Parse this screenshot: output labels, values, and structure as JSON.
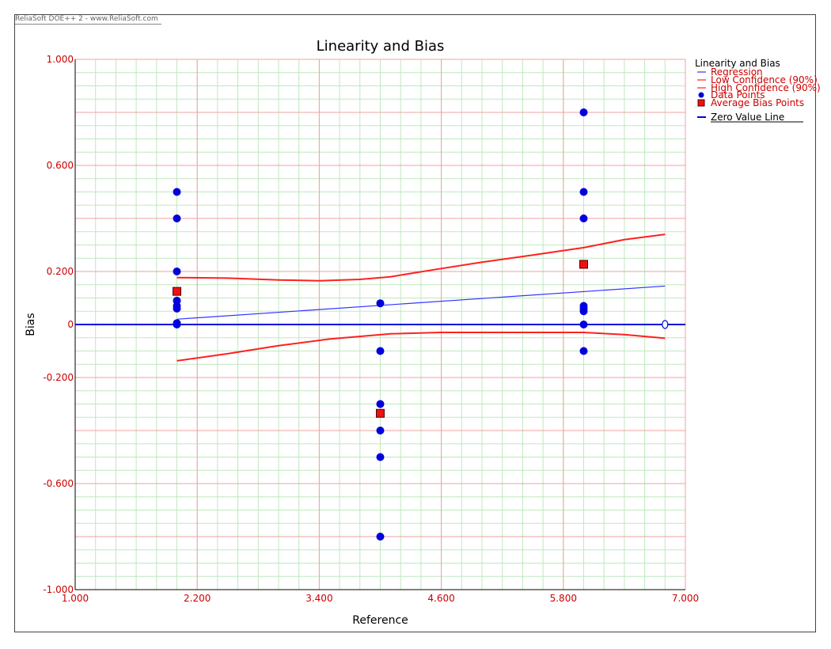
{
  "watermark": "ReliaSoft DOE++ 2 - www.ReliaSoft.com",
  "chart_data": {
    "type": "scatter",
    "title": "Linearity and Bias",
    "xlabel": "Reference",
    "ylabel": "Bias",
    "xlim": [
      1.0,
      7.0
    ],
    "ylim": [
      -1.0,
      1.0
    ],
    "xticks": [
      1.0,
      2.2,
      3.4,
      4.6,
      5.8,
      7.0
    ],
    "xtick_labels": [
      "1.000",
      "2.200",
      "3.400",
      "4.600",
      "5.800",
      "7.000"
    ],
    "yticks": [
      1.0,
      0.6,
      0.2,
      0,
      -0.2,
      -0.6,
      -1.0
    ],
    "ytick_labels": [
      "1.000",
      "0.600",
      "0.200",
      "0",
      "-0.200",
      "-0.600",
      "-1.000"
    ],
    "grid": true,
    "legend_position": "right",
    "legend": {
      "title": "Linearity and Bias",
      "items": [
        {
          "label": "Regression",
          "kind": "thin-line",
          "color": "#3333ff"
        },
        {
          "label": "Low Confidence (90%)",
          "kind": "thin-line",
          "color": "#ff2020"
        },
        {
          "label": "High Confidence (90%)",
          "kind": "thin-line",
          "color": "#ff2020"
        },
        {
          "label": "Data Points",
          "kind": "dot",
          "color": "#0000dd"
        },
        {
          "label": "Average Bias Points",
          "kind": "square",
          "color": "#ee1111"
        },
        {
          "label": "Zero Value Line",
          "kind": "thick-line",
          "color": "#0000dd"
        }
      ]
    },
    "colors": {
      "data_points": "#0000dd",
      "average_bias": "#ee1111",
      "regression": "#3333ff",
      "confidence": "#ff2020",
      "zero_line": "#0000dd",
      "major_grid": "#f2a0a0",
      "minor_grid": "#bfe8bf",
      "tick_labels": "#cc0000"
    },
    "data_points": [
      {
        "x": 2.0,
        "y": 0.5
      },
      {
        "x": 2.0,
        "y": 0.4
      },
      {
        "x": 2.0,
        "y": 0.2
      },
      {
        "x": 2.0,
        "y": 0.09
      },
      {
        "x": 2.0,
        "y": 0.07
      },
      {
        "x": 2.0,
        "y": 0.06
      },
      {
        "x": 2.0,
        "y": 0.005
      },
      {
        "x": 2.0,
        "y": 0.0
      },
      {
        "x": 4.0,
        "y": 0.08
      },
      {
        "x": 4.0,
        "y": -0.1
      },
      {
        "x": 4.0,
        "y": -0.3
      },
      {
        "x": 4.0,
        "y": -0.4
      },
      {
        "x": 4.0,
        "y": -0.5
      },
      {
        "x": 4.0,
        "y": -0.8
      },
      {
        "x": 6.0,
        "y": 0.8
      },
      {
        "x": 6.0,
        "y": 0.5
      },
      {
        "x": 6.0,
        "y": 0.4
      },
      {
        "x": 6.0,
        "y": 0.07
      },
      {
        "x": 6.0,
        "y": 0.06
      },
      {
        "x": 6.0,
        "y": 0.05
      },
      {
        "x": 6.0,
        "y": 0.0
      },
      {
        "x": 6.0,
        "y": -0.1
      }
    ],
    "average_bias_points": [
      {
        "x": 2.0,
        "y": 0.125
      },
      {
        "x": 4.0,
        "y": -0.335
      },
      {
        "x": 6.0,
        "y": 0.227
      }
    ],
    "regression": {
      "x": [
        2.0,
        6.8
      ],
      "y": [
        0.02,
        0.145
      ]
    },
    "high_confidence": {
      "x": [
        2.0,
        2.5,
        3.0,
        3.4,
        3.8,
        4.1,
        4.5,
        5.0,
        5.5,
        6.0,
        6.4,
        6.8
      ],
      "y": [
        0.177,
        0.175,
        0.168,
        0.165,
        0.17,
        0.18,
        0.205,
        0.235,
        0.262,
        0.29,
        0.32,
        0.34
      ]
    },
    "low_confidence": {
      "x": [
        2.0,
        2.5,
        3.0,
        3.5,
        4.1,
        4.6,
        5.0,
        5.5,
        6.0,
        6.4,
        6.8
      ],
      "y": [
        -0.137,
        -0.11,
        -0.08,
        -0.055,
        -0.035,
        -0.03,
        -0.03,
        -0.03,
        -0.03,
        -0.038,
        -0.052
      ]
    },
    "zero_value_line": {
      "y": 0
    },
    "zero_line_end_marker": {
      "x": 6.8,
      "y": 0
    }
  }
}
